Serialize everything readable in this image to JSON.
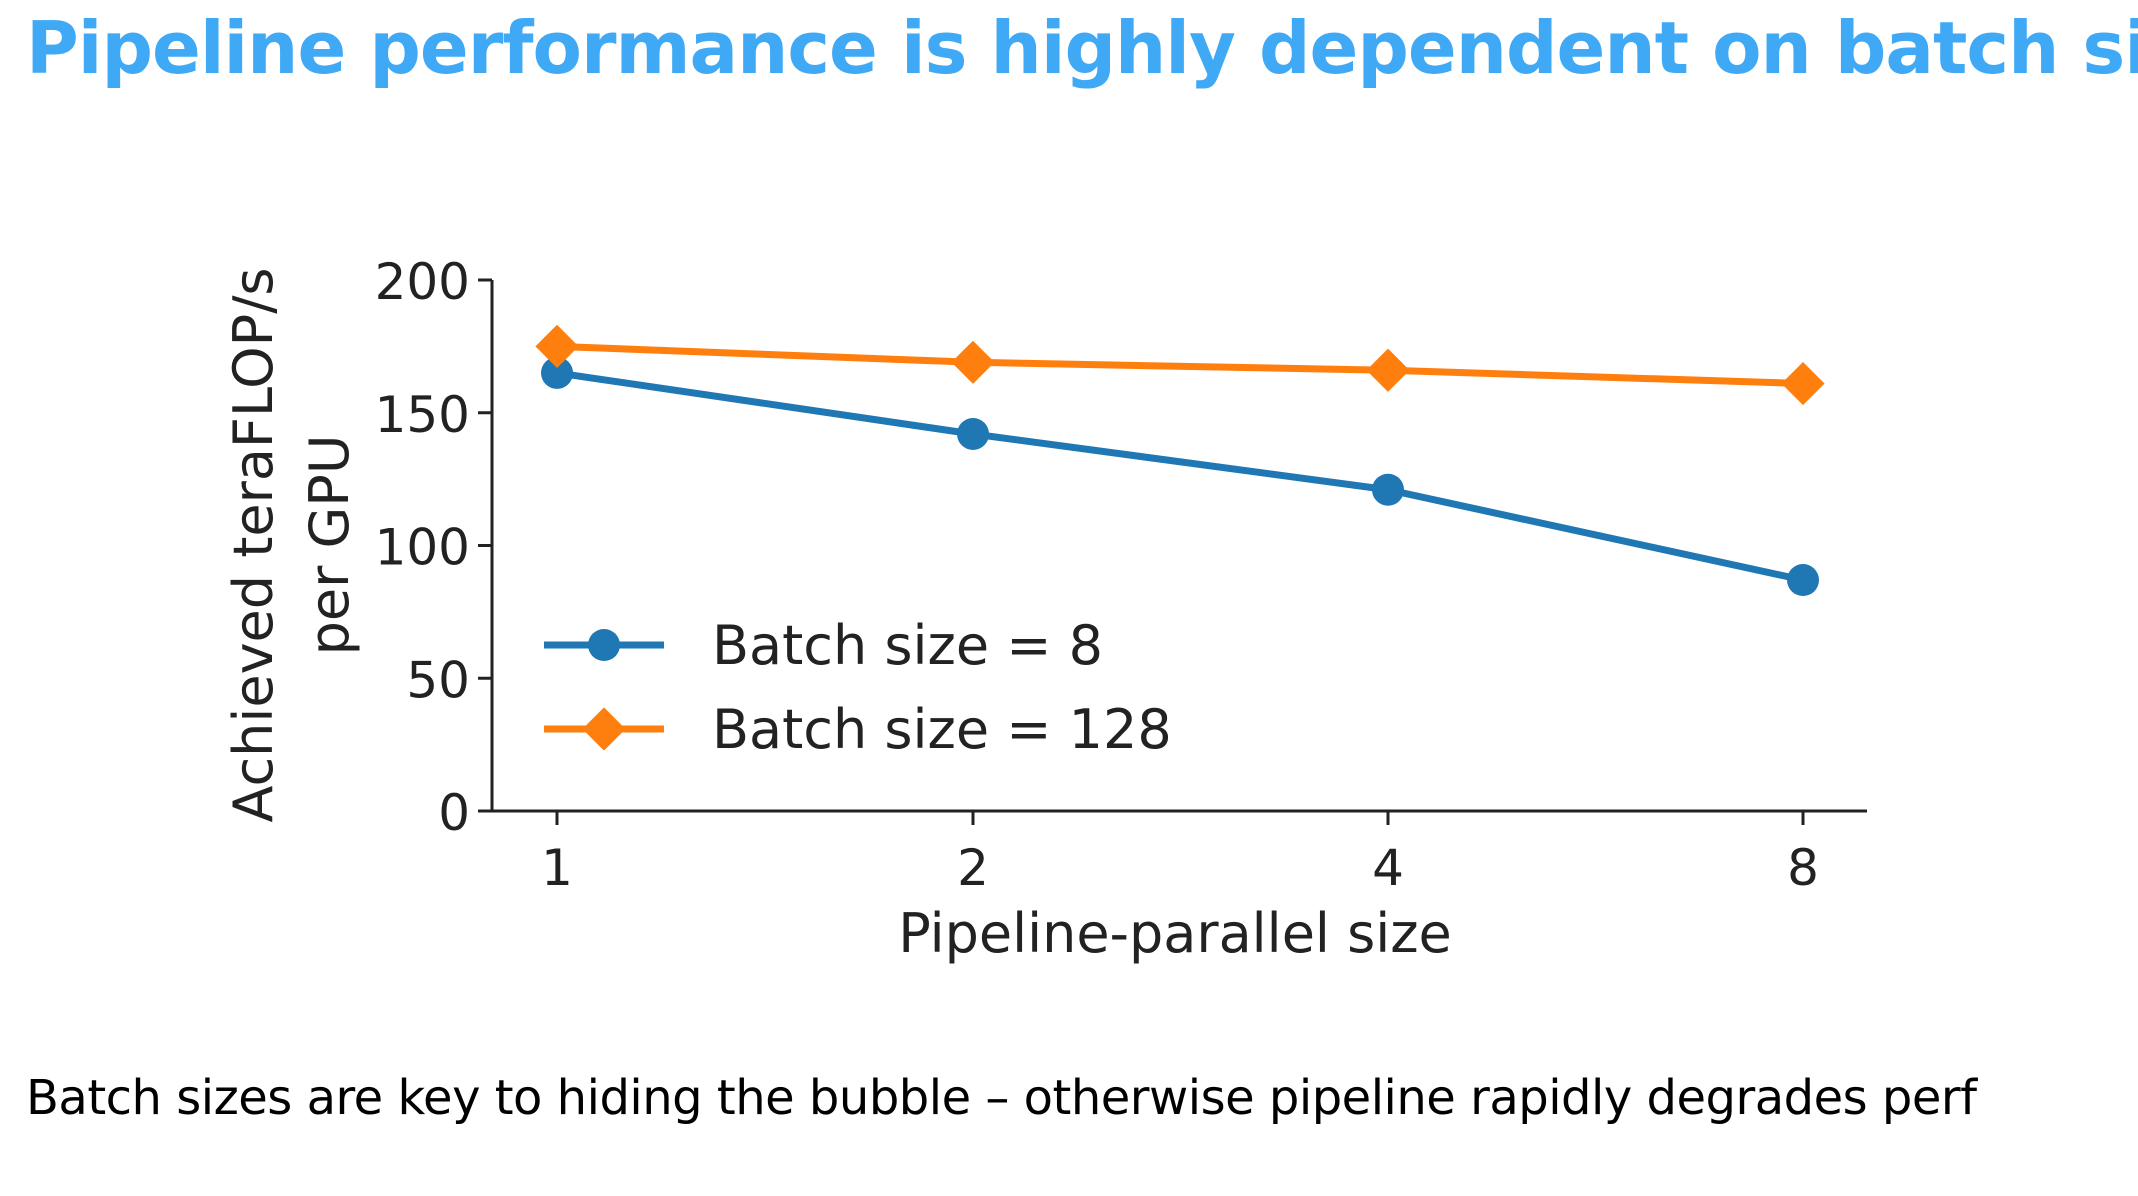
{
  "slide": {
    "title": "Pipeline performance is highly dependent on batch size",
    "caption": "Batch sizes are key to hiding the bubble – otherwise pipeline rapidly degrades perf"
  },
  "colors": {
    "title": "#3fa9f5",
    "series_blue": "#1f77b4",
    "series_orange": "#ff7f0e",
    "axis": "#222222"
  },
  "chart_data": {
    "type": "line",
    "title": "",
    "xlabel": "Pipeline-parallel size",
    "ylabel_lines": [
      "Achieved teraFLOP/s",
      "per GPU"
    ],
    "x_categories": [
      "1",
      "2",
      "4",
      "8"
    ],
    "y_ticks": [
      "0",
      "50",
      "100",
      "150",
      "200"
    ],
    "ylim": [
      0,
      200
    ],
    "grid": false,
    "legend_position": "lower-left",
    "series": [
      {
        "name": "Batch size = 8",
        "marker": "circle",
        "color": "#1f77b4",
        "values": [
          165,
          142,
          121,
          87
        ]
      },
      {
        "name": "Batch size = 128",
        "marker": "diamond",
        "color": "#ff7f0e",
        "values": [
          175,
          169,
          166,
          161
        ]
      }
    ]
  }
}
